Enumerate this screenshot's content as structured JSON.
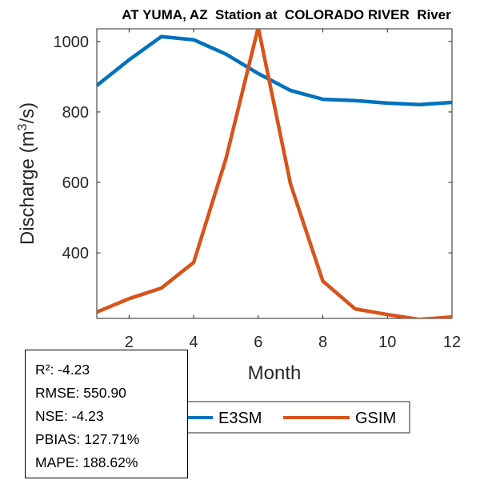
{
  "chart_data": {
    "type": "line",
    "title": "AT YUMA, AZ  Station at  COLORADO RIVER  River",
    "xlabel": "Month",
    "ylabel_main": "Discharge (m",
    "ylabel_sup": "3",
    "ylabel_end": "/s)",
    "xlim": [
      1,
      12
    ],
    "ylim": [
      214,
      1036
    ],
    "xticks": [
      2,
      4,
      6,
      8,
      10,
      12
    ],
    "yticks": [
      400,
      600,
      800,
      1000
    ],
    "x": [
      1,
      2,
      3,
      4,
      5,
      6,
      7,
      8,
      9,
      10,
      11,
      12
    ],
    "series": [
      {
        "name": "E3SM",
        "color": "#0072BD",
        "values": [
          875,
          948,
          1014,
          1005,
          964,
          909,
          861,
          836,
          832,
          825,
          821,
          827
        ]
      },
      {
        "name": "GSIM",
        "color": "#D95319",
        "values": [
          232,
          270,
          300,
          373,
          668,
          1040,
          595,
          320,
          241,
          225,
          211,
          218
        ]
      }
    ],
    "legend": {
      "location": "bottom",
      "orientation": "horizontal",
      "entries": [
        "E3SM",
        "GSIM"
      ]
    },
    "grid": false
  },
  "stats": {
    "r2": "R²: -4.23",
    "rmse": "RMSE: 550.90",
    "nse": "NSE: -4.23",
    "pbias": "PBIAS: 127.71%",
    "mape": "MAPE: 188.62%"
  }
}
